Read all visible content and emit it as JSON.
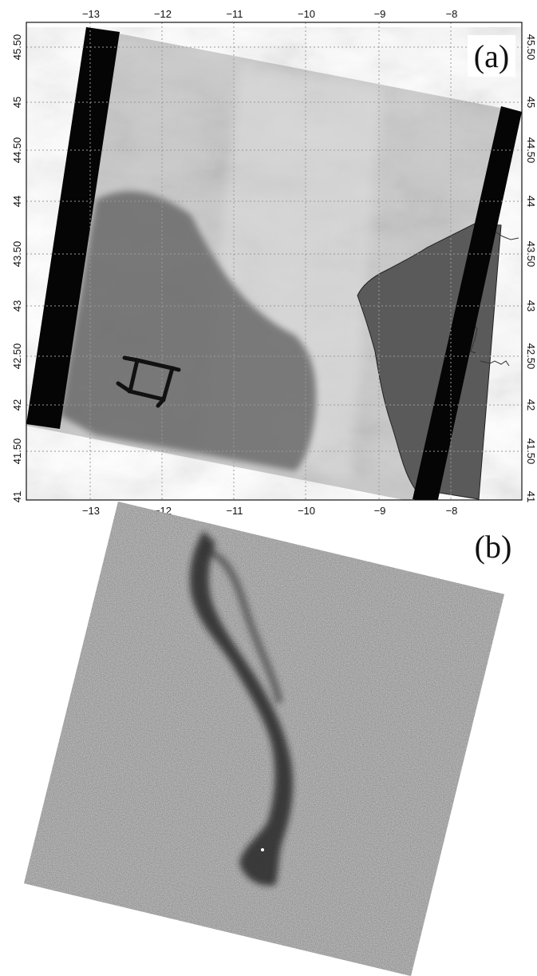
{
  "panel_a": {
    "label": "(a)",
    "x_ticks": [
      "−13",
      "−12",
      "−11",
      "−10",
      "−9",
      "−8"
    ],
    "y_ticks": [
      "45.50",
      "45",
      "44.50",
      "44",
      "43.50",
      "43",
      "42.50",
      "42",
      "41.50",
      "41"
    ]
  },
  "panel_b": {
    "label": "(b)"
  }
}
